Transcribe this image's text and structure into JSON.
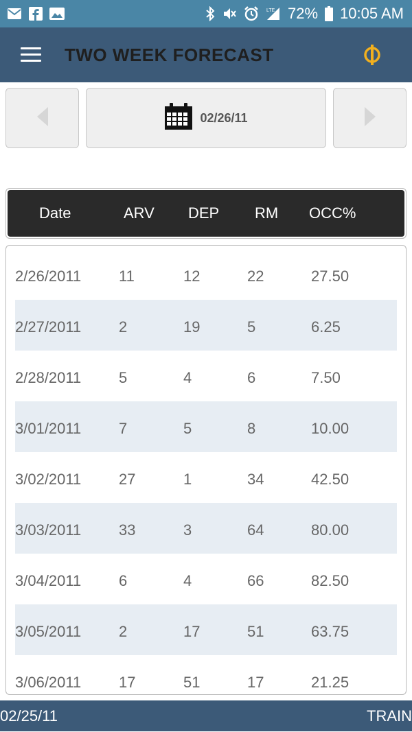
{
  "status_bar": {
    "battery": "72%",
    "time": "10:05 AM",
    "left_icons": [
      "mail-icon",
      "facebook-icon",
      "image-icon"
    ],
    "right_icons": [
      "bluetooth-icon",
      "mute-icon",
      "alarm-icon",
      "lte-signal-icon",
      "battery-icon"
    ]
  },
  "app_bar": {
    "title": "TWO WEEK FORECAST",
    "logo_icon": "phi-logo-icon",
    "logo_color": "#f2b01e"
  },
  "date_nav": {
    "date": "02/26/11",
    "prev_icon": "triangle-left-icon",
    "next_icon": "triangle-right-icon",
    "calendar_icon": "calendar-icon"
  },
  "table": {
    "columns": [
      "Date",
      "ARV",
      "DEP",
      "RM",
      "OCC%"
    ],
    "rows": [
      [
        "2/26/2011",
        "11",
        "12",
        "22",
        "27.50"
      ],
      [
        "2/27/2011",
        "2",
        "19",
        "5",
        "6.25"
      ],
      [
        "2/28/2011",
        "5",
        "4",
        "6",
        "7.50"
      ],
      [
        "3/01/2011",
        "7",
        "5",
        "8",
        "10.00"
      ],
      [
        "3/02/2011",
        "27",
        "1",
        "34",
        "42.50"
      ],
      [
        "3/03/2011",
        "33",
        "3",
        "64",
        "80.00"
      ],
      [
        "3/04/2011",
        "6",
        "4",
        "66",
        "82.50"
      ],
      [
        "3/05/2011",
        "2",
        "17",
        "51",
        "63.75"
      ],
      [
        "3/06/2011",
        "17",
        "51",
        "17",
        "21.25"
      ]
    ]
  },
  "footer": {
    "date": "02/25/11",
    "mode": "TRAIN"
  },
  "colors": {
    "status_bar": "#4a86a6",
    "app_bar": "#3c5a78",
    "header_bg": "#2a2a2a",
    "row_alt": "#e7edf3"
  }
}
